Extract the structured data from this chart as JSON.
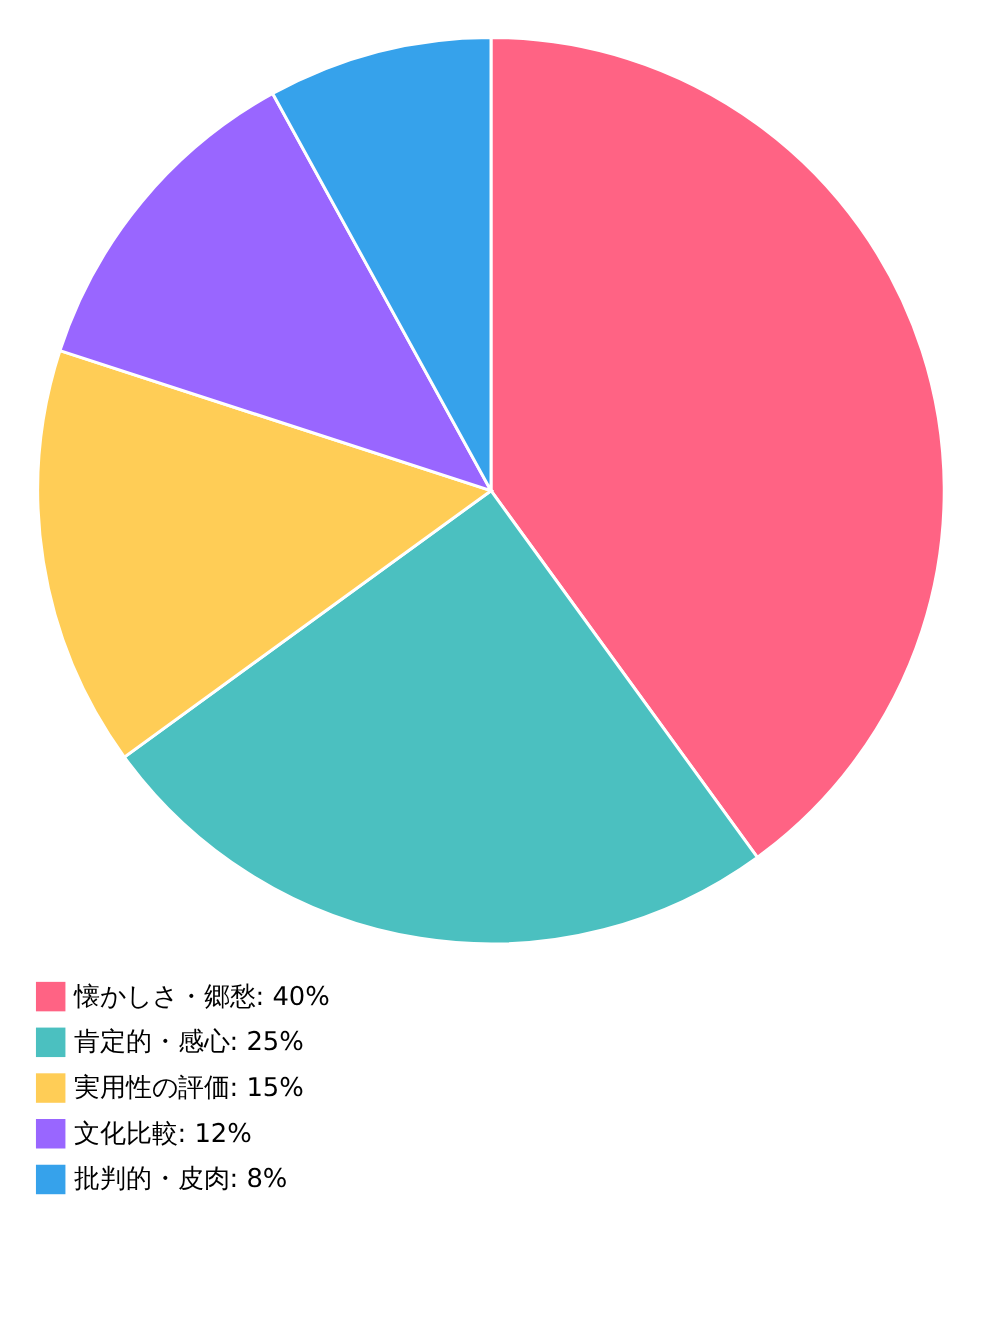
{
  "chart_data": {
    "type": "pie",
    "categories": [
      "懐かしさ・郷愁",
      "肯定的・感心",
      "実用性の評価",
      "文化比較",
      "批判的・皮肉"
    ],
    "values": [
      40,
      25,
      15,
      12,
      8
    ],
    "value_labels": [
      "40%",
      "25%",
      "15%",
      "12%",
      "8%"
    ],
    "colors": [
      "#ff6384",
      "#4bc0c0",
      "#ffcd56",
      "#9966ff",
      "#36a2eb"
    ],
    "legend": "bottom"
  }
}
